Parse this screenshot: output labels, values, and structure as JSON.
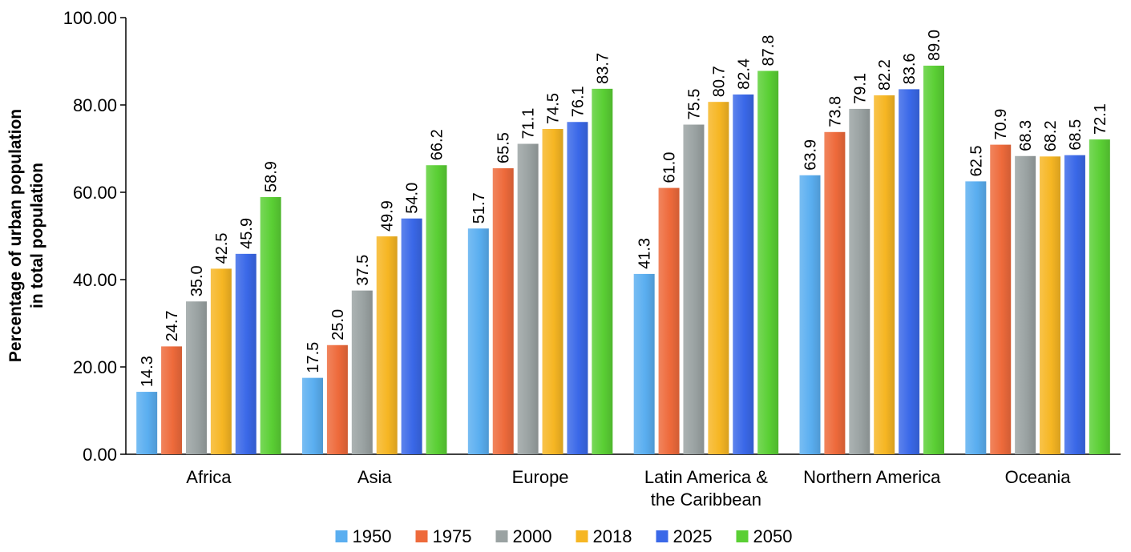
{
  "chart_data": {
    "type": "bar",
    "ylabel_lines": [
      "Percentage of urban population",
      "in total population"
    ],
    "categories": [
      [
        "Africa"
      ],
      [
        "Asia"
      ],
      [
        "Europe"
      ],
      [
        "Latin America &",
        "the Caribbean"
      ],
      [
        "Northern America"
      ],
      [
        "Oceania"
      ]
    ],
    "series": [
      {
        "name": "1950",
        "color": "#5aaef0",
        "values": [
          14.3,
          17.5,
          51.7,
          41.3,
          63.9,
          62.5
        ]
      },
      {
        "name": "1975",
        "color": "#ee6a3b",
        "values": [
          24.7,
          25.0,
          65.5,
          61.0,
          73.8,
          70.9
        ]
      },
      {
        "name": "2000",
        "color": "#9aa2a2",
        "values": [
          35.0,
          37.5,
          71.1,
          75.5,
          79.1,
          68.3
        ]
      },
      {
        "name": "2018",
        "color": "#f6b623",
        "values": [
          42.5,
          49.9,
          74.5,
          80.7,
          82.2,
          68.2
        ]
      },
      {
        "name": "2025",
        "color": "#3a68e8",
        "values": [
          45.9,
          54.0,
          76.1,
          82.4,
          83.6,
          68.5
        ]
      },
      {
        "name": "2050",
        "color": "#5acf34",
        "values": [
          58.9,
          66.2,
          83.7,
          87.8,
          89.0,
          72.1
        ]
      }
    ],
    "ylim": [
      0,
      100
    ],
    "yticks": [
      "0.00",
      "20.00",
      "40.00",
      "60.00",
      "80.00",
      "100.00"
    ],
    "grid": false,
    "legend_position": "bottom"
  }
}
